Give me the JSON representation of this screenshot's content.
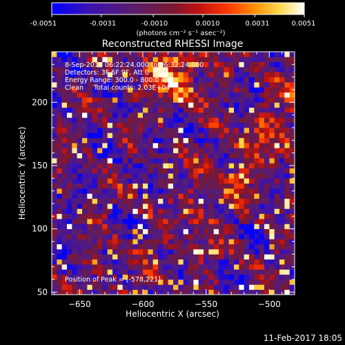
{
  "colorbar": {
    "ticks": [
      "-0.0051",
      "-0.0031",
      "-0.0010",
      "0.0010",
      "0.0031",
      "0.0051"
    ],
    "unit_label": "(photons cm⁻² s⁻¹ asec⁻²)",
    "range": [
      -0.0051,
      0.0051
    ],
    "colormap": "red-temperature (blue-purple-red-orange-yellow-white)"
  },
  "chart_data": {
    "type": "heatmap",
    "title": "Reconstructed RHESSI Image",
    "xlabel": "Heliocentric X (arcsec)",
    "ylabel": "Heliocentric Y (arcsec)",
    "xlim": [
      -672,
      -480
    ],
    "ylim": [
      48,
      240
    ],
    "x_ticks": [
      -650,
      -600,
      -550,
      -500
    ],
    "y_ticks": [
      50,
      100,
      150,
      200
    ],
    "x_tick_labels": [
      "−650",
      "−600",
      "−550",
      "−500"
    ],
    "y_tick_labels": [
      "50",
      "100",
      "150",
      "200"
    ],
    "pixel_size_arcsec": 4,
    "grid": false,
    "annotations": [
      "8-Sep-2014 06:22:24.000 to 06:32:24.000",
      "Detectors: 3F 6F 9F, Att 0",
      "Energy Range: 300.0 - 800.0 keV",
      "Clean     Total counts: 2.03E+04"
    ],
    "peak_annotation": "Position of Peak = [-578,221]",
    "peak_position": [
      -578,
      221
    ]
  },
  "footer": {
    "timestamp": "11-Feb-2017 18:05"
  }
}
